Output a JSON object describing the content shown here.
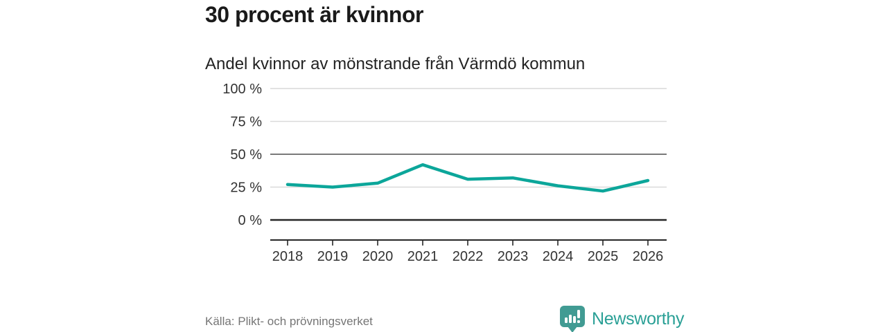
{
  "header": {
    "title": "30 procent är kvinnor",
    "subtitle": "Andel kvinnor av mönstrande från Värmdö kommun"
  },
  "chart_data": {
    "type": "line",
    "title": "30 procent är kvinnor",
    "subtitle": "Andel kvinnor av mönstrande från Värmdö kommun",
    "categories": [
      "2018",
      "2019",
      "2020",
      "2021",
      "2022",
      "2023",
      "2024",
      "2025",
      "2026"
    ],
    "series": [
      {
        "name": "Andel kvinnor av mönstrande",
        "values": [
          27,
          25,
          28,
          42,
          31,
          32,
          26,
          22,
          30
        ]
      }
    ],
    "unit": "%",
    "ylim": [
      0,
      100
    ],
    "yticks": [
      0,
      25,
      50,
      75,
      100
    ],
    "ytick_labels": [
      "0 %",
      "25 %",
      "50 %",
      "75 %",
      "100 %"
    ],
    "grid": true,
    "legend": "none",
    "emphasized_gridline": 50,
    "baseline_gridline": 0,
    "line_color": "#0ca69a"
  },
  "footer": {
    "source": "Källa: Plikt- och prövningsverket",
    "brand": "Newsworthy"
  },
  "colors": {
    "accent": "#0ca69a",
    "title_text": "#1a1a1a",
    "axis_text": "#333333",
    "grid_light": "#d9d9d9",
    "grid_mid": "#4d4d4d",
    "axis_dark": "#262626",
    "source_text": "#757575",
    "logo_badge": "#419b93",
    "logo_text": "#2aa096"
  }
}
